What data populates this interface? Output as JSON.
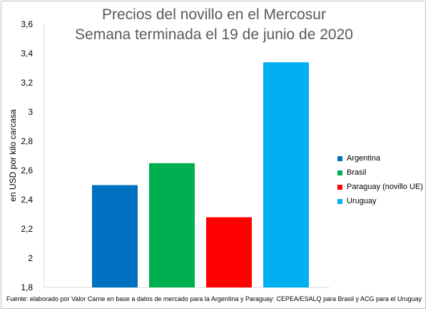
{
  "chart_data": {
    "type": "bar",
    "title": "Precios del novillo en el Mercosur",
    "subtitle": "Semana terminada el 19 de junio de 2020",
    "ylabel": "en USD por kilo carcasa",
    "xlabel": "",
    "ylim": [
      1.8,
      3.6
    ],
    "yticks": [
      1.8,
      2,
      2.2,
      2.4,
      2.6,
      2.8,
      3,
      3.2,
      3.4,
      3.6
    ],
    "ytick_labels": [
      "1,8",
      "2",
      "2,2",
      "2,4",
      "2,6",
      "2,8",
      "3",
      "3,2",
      "3,4",
      "3,6"
    ],
    "grid": false,
    "legend_position": "right",
    "series": [
      {
        "name": "Argentina",
        "value": 2.5,
        "color": "#0070C0"
      },
      {
        "name": "Brasil",
        "value": 2.65,
        "color": "#00B050"
      },
      {
        "name": "Paraguay (novillo UE)",
        "value": 2.28,
        "color": "#FF0000"
      },
      {
        "name": "Uruguay",
        "value": 3.34,
        "color": "#00B0F0"
      }
    ],
    "source": "Fuente: elaborado por Valor Carne en base a datos de mercado para la Argentina y Paraguay: CEPEA/ESALQ para Brasil y ACG para el Uruguay"
  }
}
